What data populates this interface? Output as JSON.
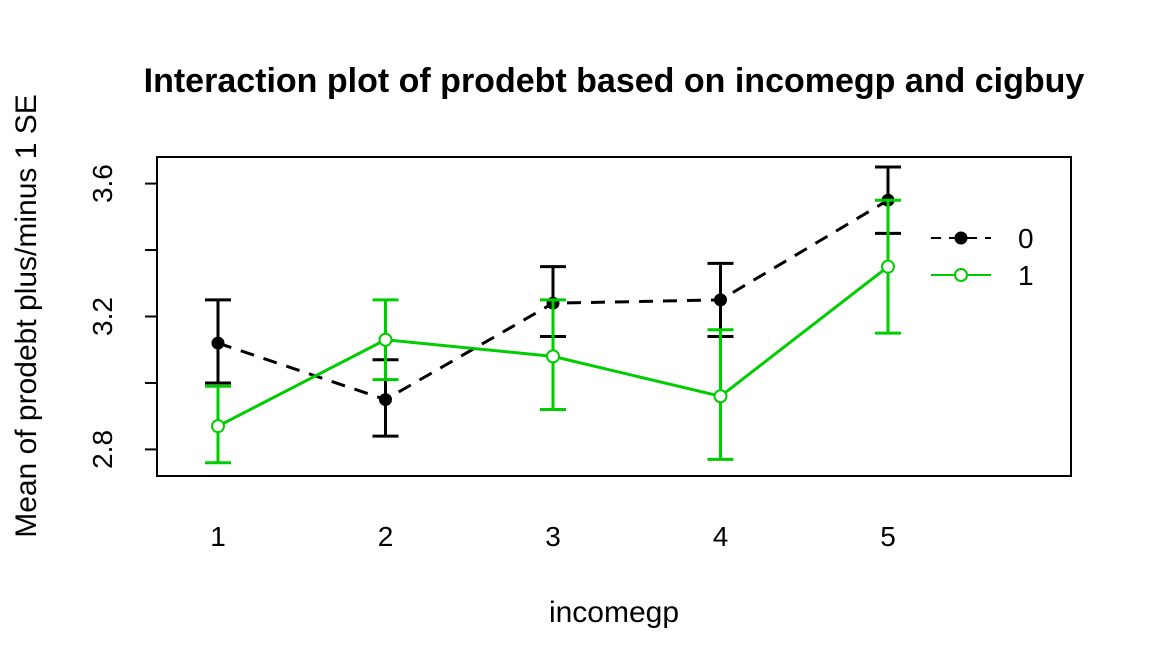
{
  "chart_data": {
    "type": "line",
    "title": "Interaction plot of prodebt based on incomegp and cigbuy",
    "xlabel": "incomegp",
    "ylabel": "Mean of  prodebt plus/minus 1 SE",
    "categories": [
      "1",
      "2",
      "3",
      "4",
      "5"
    ],
    "ylim": [
      2.72,
      3.68
    ],
    "yticks": [
      2.8,
      3.2,
      3.6
    ],
    "grid": false,
    "legend_position": "right",
    "series": [
      {
        "name": "0",
        "color": "#000000",
        "line_style": "dashed",
        "marker": "filled-circle",
        "values": [
          3.12,
          2.95,
          3.24,
          3.25,
          3.55
        ],
        "se_lower": [
          3.0,
          2.84,
          3.14,
          3.14,
          3.45
        ],
        "se_upper": [
          3.25,
          3.07,
          3.35,
          3.36,
          3.65
        ]
      },
      {
        "name": "1",
        "color": "#00cd00",
        "line_style": "solid",
        "marker": "open-circle",
        "values": [
          2.87,
          3.13,
          3.08,
          2.96,
          3.35
        ],
        "se_lower": [
          2.76,
          3.01,
          2.92,
          2.77,
          3.15
        ],
        "se_upper": [
          2.99,
          3.25,
          3.25,
          3.16,
          3.55
        ]
      }
    ]
  }
}
